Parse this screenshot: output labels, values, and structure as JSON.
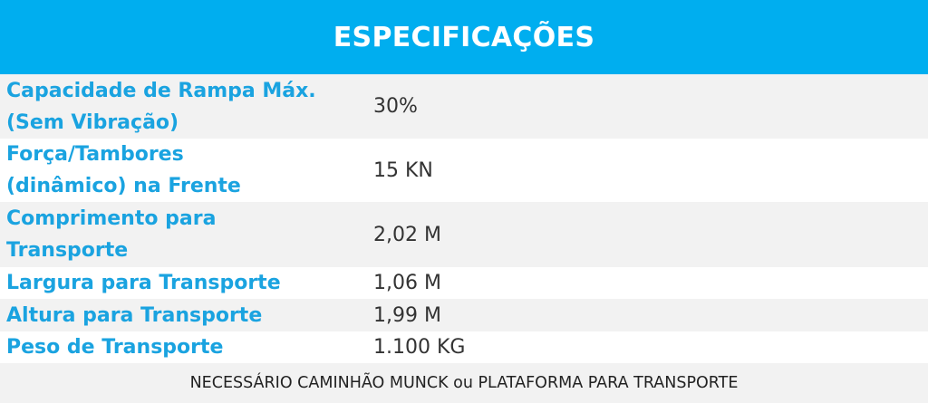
{
  "header": {
    "title": "ESPECIFICAÇÕES"
  },
  "rows": [
    {
      "label": "Capacidade de Rampa Máx.\n(Sem Vibração)",
      "value": "30%"
    },
    {
      "label": "Força/Tambores\n(dinâmico) na Frente",
      "value": "15 KN"
    },
    {
      "label": "Comprimento para\nTransporte",
      "value": "2,02 M"
    },
    {
      "label": "Largura para Transporte",
      "value": "1,06 M"
    },
    {
      "label": "Altura para Transporte",
      "value": "1,99 M"
    },
    {
      "label": "Peso de Transporte",
      "value": "1.100 KG"
    }
  ],
  "footer": {
    "note": "NECESSÁRIO CAMINHÃO MUNCK ou PLATAFORMA PARA TRANSPORTE"
  },
  "colors": {
    "header_bg": "#00aeef",
    "label_text": "#1aa3e0",
    "row_shade": "#f2f2f2"
  }
}
